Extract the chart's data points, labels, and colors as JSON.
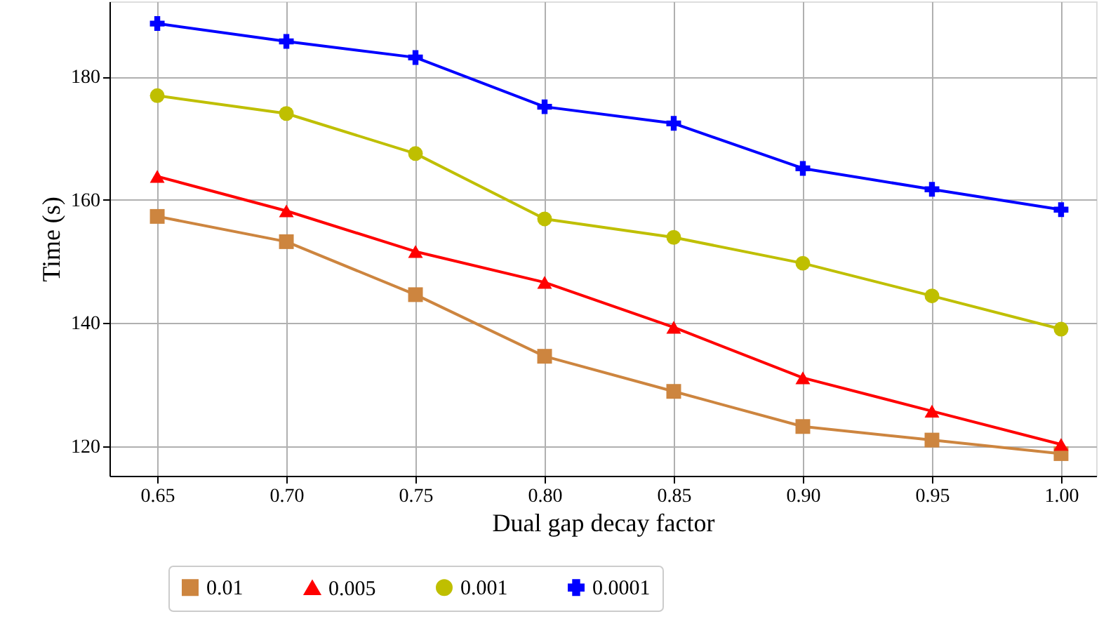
{
  "chart_data": {
    "type": "line",
    "xlabel": "Dual gap decay factor",
    "ylabel": "Time (s)",
    "x": [
      0.65,
      0.7,
      0.75,
      0.8,
      0.85,
      0.9,
      0.95,
      1.0
    ],
    "series": [
      {
        "name": "0.01",
        "color": "#cd853f",
        "marker": "square",
        "values": [
          157.3,
          153.2,
          144.6,
          134.6,
          128.9,
          123.2,
          121.0,
          118.8
        ]
      },
      {
        "name": "0.005",
        "color": "#ff0000",
        "marker": "triangle",
        "values": [
          163.8,
          158.2,
          151.6,
          146.6,
          139.3,
          131.1,
          125.7,
          120.3
        ]
      },
      {
        "name": "0.001",
        "color": "#bfbf00",
        "marker": "circle",
        "values": [
          176.9,
          174.0,
          167.5,
          156.9,
          153.9,
          149.7,
          144.4,
          139.0
        ]
      },
      {
        "name": "0.0001",
        "color": "#0000ff",
        "marker": "cross",
        "values": [
          188.6,
          185.7,
          183.1,
          175.1,
          172.4,
          165.1,
          161.7,
          158.4
        ]
      }
    ],
    "xlim": [
      0.6315,
      1.0136
    ],
    "ylim": [
      115.2,
      192.2
    ],
    "xticks": [
      {
        "value": 0.65,
        "label": "0.65"
      },
      {
        "value": 0.7,
        "label": "0.70"
      },
      {
        "value": 0.75,
        "label": "0.75"
      },
      {
        "value": 0.8,
        "label": "0.80"
      },
      {
        "value": 0.85,
        "label": "0.85"
      },
      {
        "value": 0.9,
        "label": "0.90"
      },
      {
        "value": 0.95,
        "label": "0.95"
      },
      {
        "value": 1.0,
        "label": "1.00"
      }
    ],
    "yticks": [
      120,
      140,
      160,
      180
    ],
    "grid": true,
    "legend": "bottom",
    "line_style": "solid"
  }
}
